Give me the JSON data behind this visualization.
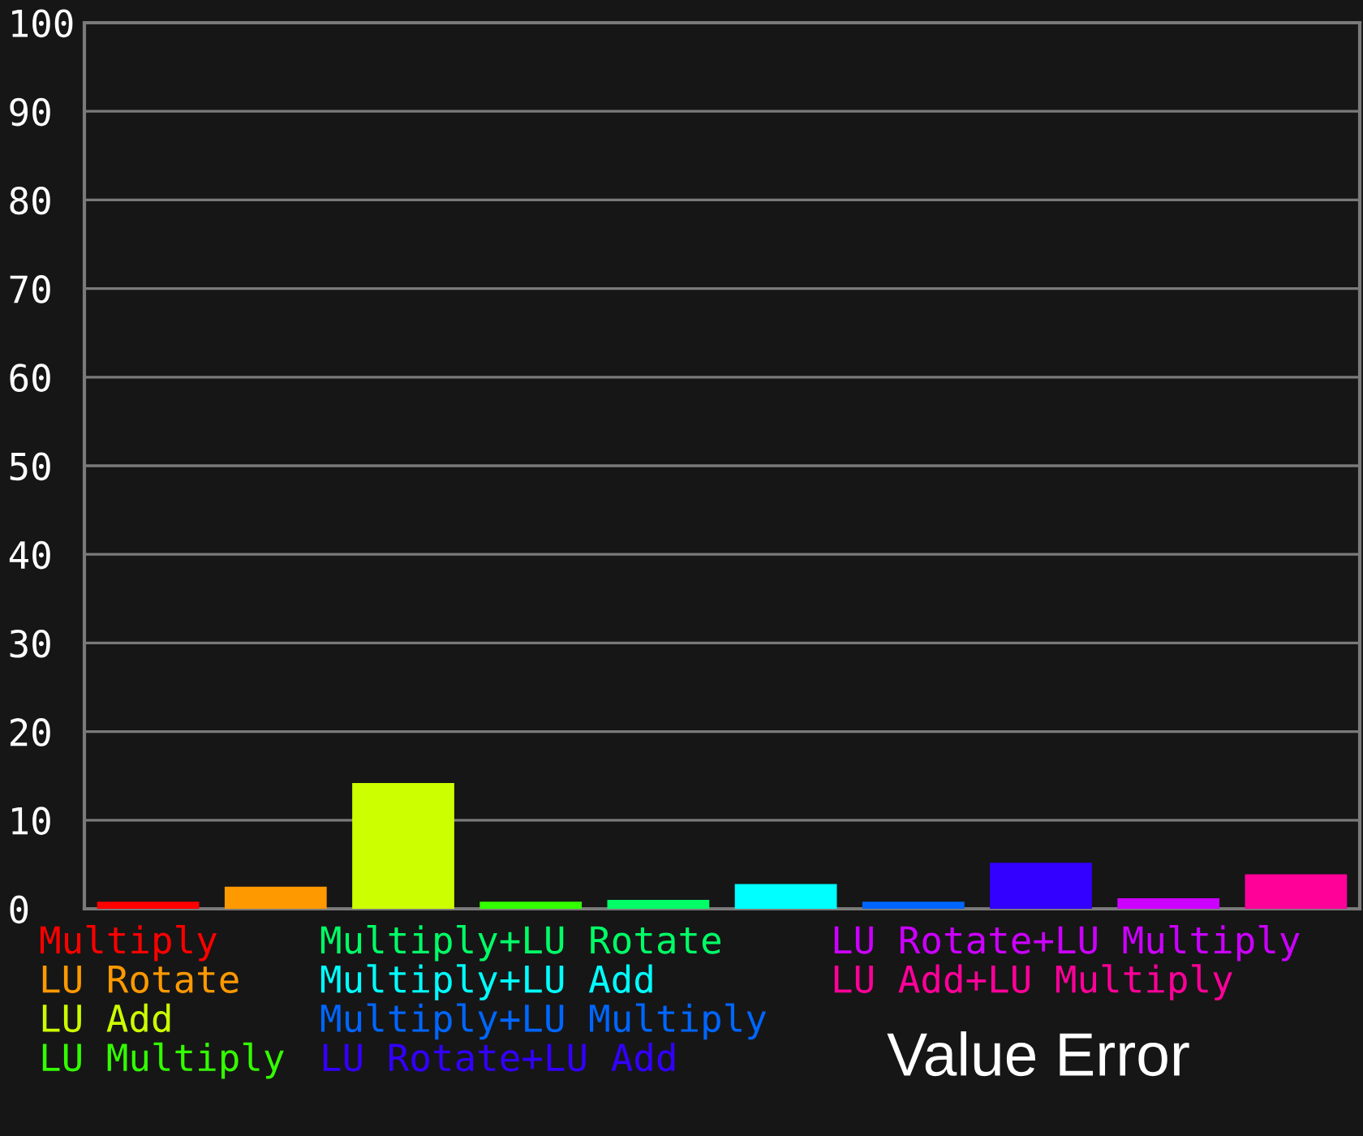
{
  "chart_data": {
    "type": "bar",
    "title": "Value Error",
    "categories": [
      null
    ],
    "series": [
      {
        "name": "Multiply",
        "color": "#ff0000",
        "values": [
          0.8
        ]
      },
      {
        "name": "LU Rotate",
        "color": "#ff9900",
        "values": [
          2.5
        ]
      },
      {
        "name": "LU Add",
        "color": "#ccff00",
        "values": [
          14.2
        ]
      },
      {
        "name": "LU Multiply",
        "color": "#33ff00",
        "values": [
          0.8
        ]
      },
      {
        "name": "Multiply+LU Rotate",
        "color": "#00ff66",
        "values": [
          1.0
        ]
      },
      {
        "name": "Multiply+LU Add",
        "color": "#00ffff",
        "values": [
          2.8
        ]
      },
      {
        "name": "Multiply+LU Multiply",
        "color": "#0066ff",
        "values": [
          0.8
        ]
      },
      {
        "name": "LU Rotate+LU Add",
        "color": "#3300ff",
        "values": [
          5.2
        ]
      },
      {
        "name": "LU Rotate+LU Multiply",
        "color": "#cc00ff",
        "values": [
          1.2
        ]
      },
      {
        "name": "LU Add+LU Multiply",
        "color": "#ff0099",
        "values": [
          3.9
        ]
      }
    ],
    "ylim": [
      0,
      100
    ],
    "yticks": [
      0,
      10,
      20,
      30,
      40,
      50,
      60,
      70,
      80,
      90,
      100
    ],
    "grid": "y",
    "legend": "bottom"
  }
}
